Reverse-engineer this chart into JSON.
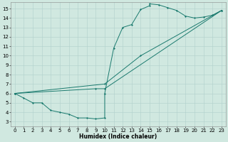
{
  "xlabel": "Humidex (Indice chaleur)",
  "xlim": [
    -0.5,
    23.5
  ],
  "ylim": [
    2.5,
    15.7
  ],
  "xticks": [
    0,
    1,
    2,
    3,
    4,
    5,
    6,
    7,
    8,
    9,
    10,
    11,
    12,
    13,
    14,
    15,
    16,
    17,
    18,
    19,
    20,
    21,
    22,
    23
  ],
  "yticks": [
    3,
    4,
    5,
    6,
    7,
    8,
    9,
    10,
    11,
    12,
    13,
    14,
    15
  ],
  "bg_color": "#d0e8e0",
  "grid_color": "#b0d0cc",
  "line_color": "#1a7a6e",
  "line1_x": [
    0,
    1,
    2,
    3,
    4,
    5,
    6,
    7,
    8,
    9,
    10,
    10,
    11,
    12,
    13,
    14,
    15,
    15,
    16,
    17,
    18,
    19,
    20,
    21,
    22,
    23
  ],
  "line1_y": [
    6.0,
    5.5,
    5.0,
    5.0,
    4.2,
    4.0,
    3.8,
    3.4,
    3.4,
    3.3,
    3.4,
    6.0,
    10.8,
    13.0,
    13.3,
    14.9,
    15.3,
    15.5,
    15.4,
    15.1,
    14.8,
    14.2,
    14.0,
    14.1,
    14.3,
    14.8
  ],
  "line2_x": [
    0,
    9,
    10,
    23
  ],
  "line2_y": [
    6.0,
    6.5,
    6.5,
    14.8
  ],
  "line3_x": [
    0,
    10,
    14,
    23
  ],
  "line3_y": [
    6.0,
    7.0,
    10.0,
    14.8
  ],
  "font_size": 5.5,
  "tick_fontsize": 5,
  "marker_size": 1.5,
  "linewidth": 0.7
}
